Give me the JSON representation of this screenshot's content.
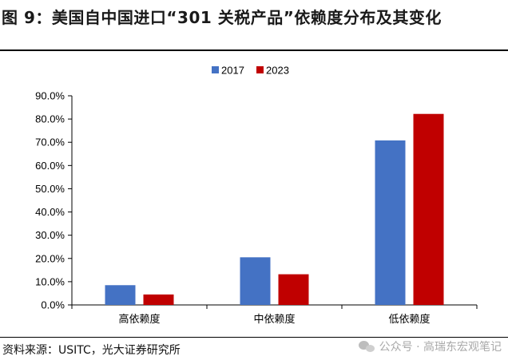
{
  "header": {
    "title": "图 9：美国自中国进口“301 关税产品”依赖度分布及其变化"
  },
  "footer": {
    "source": "资料来源：USITC，光大证券研究所",
    "watermark": "公众号 · 高瑞东宏观笔记"
  },
  "colors": {
    "series_2017": "#4472c4",
    "series_2023": "#c00000"
  },
  "chart_data": {
    "type": "bar",
    "title": "",
    "xlabel": "",
    "ylabel": "",
    "categories": [
      "高依赖度",
      "中依赖度",
      "低依赖度"
    ],
    "series": [
      {
        "name": "2017",
        "values": [
          8.5,
          20.5,
          70.8
        ]
      },
      {
        "name": "2023",
        "values": [
          4.5,
          13.2,
          82.2
        ]
      }
    ],
    "ylim": [
      0,
      90
    ],
    "yticks": [
      "0.0%",
      "10.0%",
      "20.0%",
      "30.0%",
      "40.0%",
      "50.0%",
      "60.0%",
      "70.0%",
      "80.0%",
      "90.0%"
    ],
    "ytick_step": 10,
    "legend": "top-center",
    "grid": false
  }
}
